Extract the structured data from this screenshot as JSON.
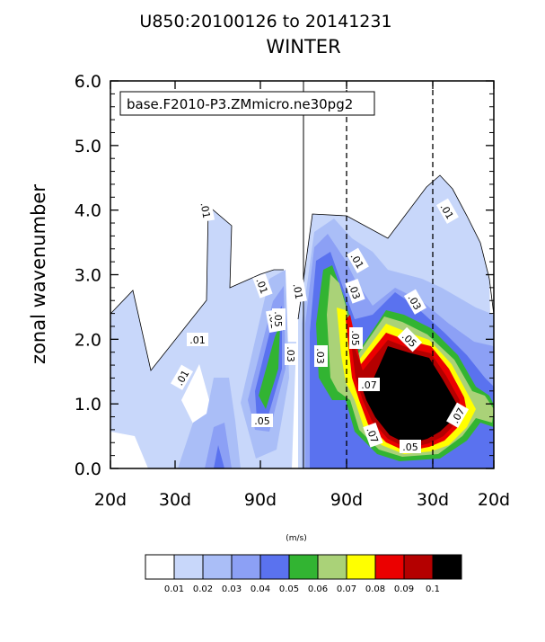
{
  "chart_data": {
    "type": "contour",
    "title_line1": "U850:20100126 to 20141231",
    "title_line2": "WINTER",
    "legend_label": "base.F2010-P3.ZMmicro.ne30pg2",
    "ylabel": "zonal wavenumber",
    "ylim": [
      0,
      6
    ],
    "yticks": [
      "0.0",
      "1.0",
      "2.0",
      "3.0",
      "4.0",
      "5.0",
      "6.0"
    ],
    "xticks": [
      "20d",
      "30d",
      "90d",
      "90d",
      "30d",
      "20d"
    ],
    "units": "(m/s)",
    "colorbar": {
      "colors": [
        "#ffffff",
        "#c8d7fa",
        "#aabef7",
        "#8ca0f5",
        "#5a72ef",
        "#32b432",
        "#aad278",
        "#ffff00",
        "#eb0000",
        "#b40000",
        "#000000"
      ],
      "labels": [
        "0.01",
        "0.02",
        "0.03",
        "0.04",
        "0.05",
        "0.06",
        "0.07",
        "0.08",
        "0.09",
        "0.1"
      ]
    },
    "contour_labels": [
      ".01",
      ".01",
      ".01",
      ".01",
      ".01",
      ".01",
      ".01",
      ".01",
      ".03",
      ".05",
      ".05",
      ".03",
      ".03",
      ".05",
      ".07",
      ".03",
      ".05",
      ".07",
      ".07",
      ".05"
    ]
  }
}
